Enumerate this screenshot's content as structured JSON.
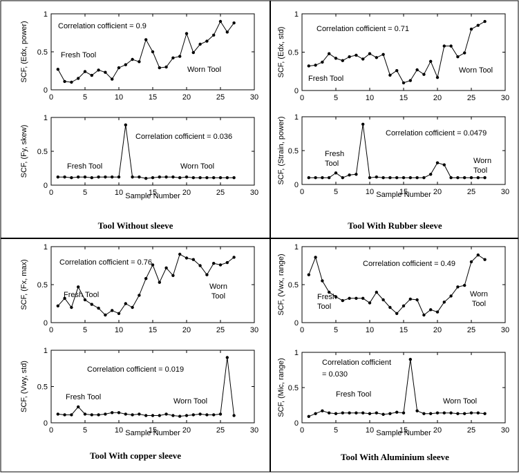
{
  "panel_titles": [
    "Tool  Without  sleeve",
    "Tool  With Rubber  sleeve",
    "Tool  With copper  sleeve",
    "Tool  With Aluminium sleeve"
  ],
  "chart_data": [
    {
      "type": "line",
      "panel": "Tool  Without  sleeve",
      "ylabel": "SCF, (Edx, power)",
      "xlabel": "",
      "xlim": [
        0,
        30
      ],
      "ylim": [
        0,
        1
      ],
      "xticks": [
        "0",
        "5",
        "10",
        "15",
        "20",
        "25",
        "30"
      ],
      "yticks": [
        "0",
        "0.5",
        "1"
      ],
      "annotations": [
        "Correlation cofficient = 0.9",
        "Fresh Tool",
        "Worn Tool"
      ],
      "x": [
        1,
        2,
        3,
        4,
        5,
        6,
        7,
        8,
        9,
        10,
        11,
        12,
        13,
        14,
        15,
        16,
        17,
        18,
        19,
        20,
        21,
        22,
        23,
        24,
        25,
        26,
        27
      ],
      "values": [
        0.27,
        0.11,
        0.1,
        0.15,
        0.24,
        0.19,
        0.26,
        0.23,
        0.14,
        0.29,
        0.33,
        0.4,
        0.37,
        0.66,
        0.5,
        0.29,
        0.3,
        0.42,
        0.44,
        0.74,
        0.49,
        0.6,
        0.64,
        0.72,
        0.9,
        0.76,
        0.88
      ]
    },
    {
      "type": "line",
      "panel": "Tool  Without  sleeve",
      "ylabel": "SCF, (Fy, skew)",
      "xlabel": "Sample Number",
      "xlim": [
        0,
        30
      ],
      "ylim": [
        0,
        1
      ],
      "xticks": [
        "0",
        "5",
        "10",
        "15",
        "20",
        "25",
        "30"
      ],
      "yticks": [
        "0",
        "0.5",
        "1"
      ],
      "annotations": [
        "Correlation cofficient = 0.036",
        "Fresh Tool",
        "Worn Tool"
      ],
      "x": [
        1,
        2,
        3,
        4,
        5,
        6,
        7,
        8,
        9,
        10,
        11,
        12,
        13,
        14,
        15,
        16,
        17,
        18,
        19,
        20,
        21,
        22,
        23,
        24,
        25,
        26,
        27
      ],
      "values": [
        0.12,
        0.12,
        0.11,
        0.12,
        0.12,
        0.11,
        0.12,
        0.12,
        0.12,
        0.12,
        0.89,
        0.12,
        0.12,
        0.1,
        0.11,
        0.12,
        0.12,
        0.12,
        0.11,
        0.12,
        0.11,
        0.11,
        0.11,
        0.11,
        0.11,
        0.11,
        0.11
      ]
    },
    {
      "type": "line",
      "panel": "Tool  With Rubber  sleeve",
      "ylabel": "SCF, (Edx, std)",
      "xlabel": "",
      "xlim": [
        0,
        30
      ],
      "ylim": [
        0,
        1
      ],
      "xticks": [
        "0",
        "5",
        "10",
        "15",
        "20",
        "25",
        "30"
      ],
      "yticks": [
        "0",
        "0.5",
        "1"
      ],
      "annotations": [
        "Correlation cofficient = 0.71",
        "Fresh Tool",
        "Worn Tool"
      ],
      "x": [
        1,
        2,
        3,
        4,
        5,
        6,
        7,
        8,
        9,
        10,
        11,
        12,
        13,
        14,
        15,
        16,
        17,
        18,
        19,
        20,
        21,
        22,
        23,
        24,
        25,
        26,
        27
      ],
      "values": [
        0.32,
        0.33,
        0.37,
        0.48,
        0.42,
        0.39,
        0.44,
        0.46,
        0.41,
        0.48,
        0.43,
        0.47,
        0.2,
        0.26,
        0.1,
        0.13,
        0.27,
        0.21,
        0.38,
        0.17,
        0.58,
        0.58,
        0.44,
        0.49,
        0.8,
        0.85,
        0.9
      ]
    },
    {
      "type": "line",
      "panel": "Tool  With Rubber  sleeve",
      "ylabel": "SCF, (Strain, power)",
      "xlabel": "Sample Number",
      "xlim": [
        0,
        30
      ],
      "ylim": [
        0,
        1
      ],
      "xticks": [
        "0",
        "5",
        "10",
        "15",
        "20",
        "25",
        "30"
      ],
      "yticks": [
        "0",
        "0.5",
        "1"
      ],
      "annotations": [
        "Correlation cofficient = 0.0479",
        "Fresh Tool",
        "Worn Tool"
      ],
      "x": [
        1,
        2,
        3,
        4,
        5,
        6,
        7,
        8,
        9,
        10,
        11,
        12,
        13,
        14,
        15,
        16,
        17,
        18,
        19,
        20,
        21,
        22,
        23,
        24,
        25,
        26,
        27
      ],
      "values": [
        0.1,
        0.1,
        0.1,
        0.1,
        0.17,
        0.1,
        0.14,
        0.15,
        0.89,
        0.1,
        0.11,
        0.1,
        0.1,
        0.1,
        0.1,
        0.1,
        0.1,
        0.1,
        0.15,
        0.32,
        0.29,
        0.1,
        0.1,
        0.1,
        0.1,
        0.1,
        0.1
      ]
    },
    {
      "type": "line",
      "panel": "Tool  With copper  sleeve",
      "ylabel": "SCF, (Fx, max)",
      "xlabel": "",
      "xlim": [
        0,
        30
      ],
      "ylim": [
        0,
        1
      ],
      "xticks": [
        "0",
        "5",
        "10",
        "15",
        "20",
        "25",
        "30"
      ],
      "yticks": [
        "0",
        "0.5",
        "1"
      ],
      "annotations": [
        "Correlation cofficient = 0.76",
        "Fresh Tool",
        "Worn Tool"
      ],
      "x": [
        1,
        2,
        3,
        4,
        5,
        6,
        7,
        8,
        9,
        10,
        11,
        12,
        13,
        14,
        15,
        16,
        17,
        18,
        19,
        20,
        21,
        22,
        23,
        24,
        25,
        26,
        27
      ],
      "values": [
        0.22,
        0.32,
        0.2,
        0.47,
        0.3,
        0.24,
        0.19,
        0.1,
        0.16,
        0.12,
        0.25,
        0.2,
        0.36,
        0.58,
        0.76,
        0.53,
        0.72,
        0.62,
        0.9,
        0.85,
        0.83,
        0.75,
        0.63,
        0.78,
        0.76,
        0.79,
        0.86
      ]
    },
    {
      "type": "line",
      "panel": "Tool  With copper  sleeve",
      "ylabel": "SCF,  (Vwy, std)",
      "xlabel": "Sample Number",
      "xlim": [
        0,
        30
      ],
      "ylim": [
        0,
        1
      ],
      "xticks": [
        "0",
        "5",
        "10",
        "15",
        "20",
        "25",
        "30"
      ],
      "yticks": [
        "0",
        "0.5",
        "1"
      ],
      "annotations": [
        "Correlation cofficient = 0.019",
        "Fresh Tool",
        "Worn Tool"
      ],
      "x": [
        1,
        2,
        3,
        4,
        5,
        6,
        7,
        8,
        9,
        10,
        11,
        12,
        13,
        14,
        15,
        16,
        17,
        18,
        19,
        20,
        21,
        22,
        23,
        24,
        25,
        26,
        27
      ],
      "values": [
        0.12,
        0.11,
        0.11,
        0.22,
        0.12,
        0.11,
        0.11,
        0.12,
        0.14,
        0.14,
        0.12,
        0.11,
        0.12,
        0.1,
        0.1,
        0.1,
        0.12,
        0.1,
        0.09,
        0.1,
        0.11,
        0.12,
        0.11,
        0.11,
        0.12,
        0.9,
        0.1
      ]
    },
    {
      "type": "line",
      "panel": "Tool  With Aluminium sleeve",
      "ylabel": "SCF, (Vwx, range)",
      "xlabel": "",
      "xlim": [
        0,
        30
      ],
      "ylim": [
        0,
        1
      ],
      "xticks": [
        "0",
        "5",
        "10",
        "15",
        "20",
        "25",
        "30"
      ],
      "yticks": [
        "0",
        "0.5",
        "1"
      ],
      "annotations": [
        "Correlation cofficient = 0.49",
        "Fresh Tool",
        "Worn Tool"
      ],
      "x": [
        1,
        2,
        3,
        4,
        5,
        6,
        7,
        8,
        9,
        10,
        11,
        12,
        13,
        14,
        15,
        16,
        17,
        18,
        19,
        20,
        21,
        22,
        23,
        24,
        25,
        26,
        27
      ],
      "values": [
        0.63,
        0.86,
        0.55,
        0.4,
        0.34,
        0.29,
        0.32,
        0.32,
        0.32,
        0.26,
        0.4,
        0.3,
        0.2,
        0.12,
        0.22,
        0.31,
        0.3,
        0.1,
        0.17,
        0.14,
        0.27,
        0.35,
        0.47,
        0.49,
        0.8,
        0.89,
        0.83
      ]
    },
    {
      "type": "line",
      "panel": "Tool  With Aluminium sleeve",
      "ylabel": "SCF, (Mic, range)",
      "xlabel": "Sample Number",
      "xlim": [
        0,
        30
      ],
      "ylim": [
        0,
        1
      ],
      "xticks": [
        "0",
        "5",
        "10",
        "15",
        "20",
        "25",
        "30"
      ],
      "yticks": [
        "0",
        "0.5",
        "1"
      ],
      "annotations": [
        "Correlation cofficient",
        "= 0.030",
        "Fresh Tool",
        "Worn Tool"
      ],
      "x": [
        1,
        2,
        3,
        4,
        5,
        6,
        7,
        8,
        9,
        10,
        11,
        12,
        13,
        14,
        15,
        16,
        17,
        18,
        19,
        20,
        21,
        22,
        23,
        24,
        25,
        26,
        27
      ],
      "values": [
        0.09,
        0.13,
        0.17,
        0.14,
        0.13,
        0.14,
        0.14,
        0.14,
        0.14,
        0.13,
        0.14,
        0.12,
        0.13,
        0.15,
        0.14,
        0.9,
        0.17,
        0.13,
        0.13,
        0.14,
        0.14,
        0.14,
        0.13,
        0.13,
        0.14,
        0.14,
        0.13
      ]
    }
  ]
}
